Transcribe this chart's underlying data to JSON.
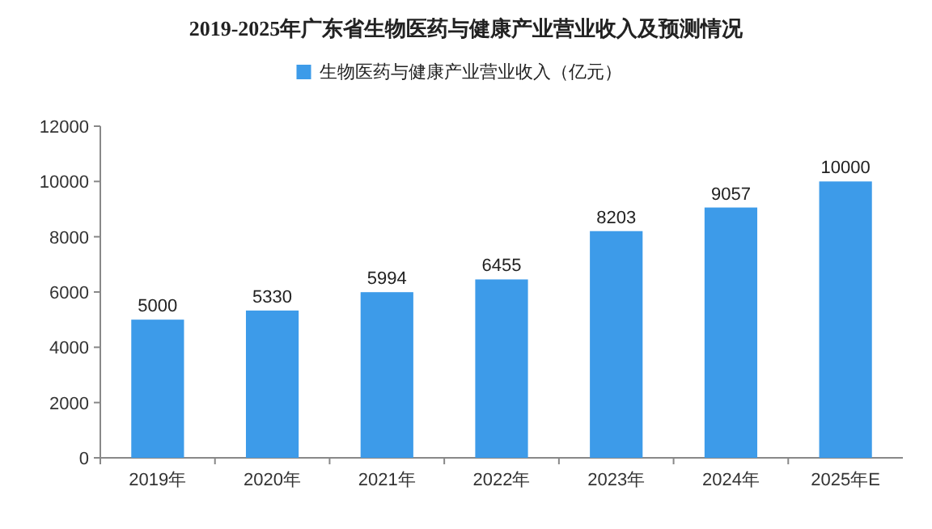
{
  "chart_data": {
    "type": "bar",
    "title": "2019-2025年广东省生物医药与健康产业营业收入及预测情况",
    "categories": [
      "2019年",
      "2020年",
      "2021年",
      "2022年",
      "2023年",
      "2024年",
      "2025年E"
    ],
    "series": [
      {
        "name": "生物医药与健康产业营业收入（亿元）",
        "color": "#3d9be9",
        "values": [
          5000,
          5330,
          5994,
          6455,
          8203,
          9057,
          10000
        ]
      }
    ],
    "ylim": [
      0,
      12000
    ],
    "yticks": [
      0,
      2000,
      4000,
      6000,
      8000,
      10000,
      12000
    ],
    "data_labels": true,
    "legend": "top",
    "grid": false
  }
}
